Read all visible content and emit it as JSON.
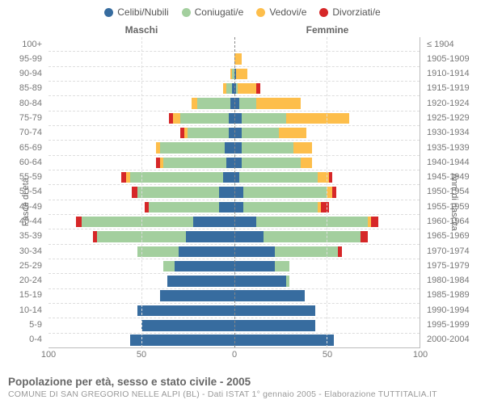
{
  "legend": [
    {
      "label": "Celibi/Nubili",
      "color": "#376c9f"
    },
    {
      "label": "Coniugati/e",
      "color": "#a3cf9e"
    },
    {
      "label": "Vedovi/e",
      "color": "#fdbe4b"
    },
    {
      "label": "Divorziati/e",
      "color": "#d62728"
    }
  ],
  "gender": {
    "left": "Maschi",
    "right": "Femmine"
  },
  "axis": {
    "left_title": "Fasce di età",
    "right_title": "Anni di nascita",
    "x_max": 100,
    "x_ticks": [
      100,
      50,
      0,
      50,
      100
    ]
  },
  "title": "Popolazione per età, sesso e stato civile - 2005",
  "subtitle": "COMUNE DI SAN GREGORIO NELLE ALPI (BL) - Dati ISTAT 1° gennaio 2005 - Elaborazione TUTTITALIA.IT",
  "colors": {
    "background": "#ffffff",
    "grid": "#dddddd",
    "center": "#888888",
    "text": "#777777"
  },
  "rows": [
    {
      "age": "100+",
      "birth": "≤ 1904",
      "m": {
        "c": 0,
        "co": 0,
        "v": 0,
        "d": 0
      },
      "f": {
        "c": 0,
        "co": 0,
        "v": 0,
        "d": 0
      }
    },
    {
      "age": "95-99",
      "birth": "1905-1909",
      "m": {
        "c": 0,
        "co": 0,
        "v": 0,
        "d": 0
      },
      "f": {
        "c": 0,
        "co": 0,
        "v": 4,
        "d": 0
      }
    },
    {
      "age": "90-94",
      "birth": "1910-1914",
      "m": {
        "c": 0,
        "co": 1,
        "v": 1,
        "d": 0
      },
      "f": {
        "c": 1,
        "co": 0,
        "v": 6,
        "d": 0
      }
    },
    {
      "age": "85-89",
      "birth": "1915-1919",
      "m": {
        "c": 1,
        "co": 3,
        "v": 2,
        "d": 0
      },
      "f": {
        "c": 1,
        "co": 1,
        "v": 10,
        "d": 2
      }
    },
    {
      "age": "80-84",
      "birth": "1920-1924",
      "m": {
        "c": 2,
        "co": 18,
        "v": 3,
        "d": 0
      },
      "f": {
        "c": 3,
        "co": 9,
        "v": 24,
        "d": 0
      }
    },
    {
      "age": "75-79",
      "birth": "1925-1929",
      "m": {
        "c": 3,
        "co": 26,
        "v": 4,
        "d": 2
      },
      "f": {
        "c": 4,
        "co": 24,
        "v": 34,
        "d": 0
      }
    },
    {
      "age": "70-74",
      "birth": "1930-1934",
      "m": {
        "c": 3,
        "co": 22,
        "v": 2,
        "d": 2
      },
      "f": {
        "c": 4,
        "co": 20,
        "v": 15,
        "d": 0
      }
    },
    {
      "age": "65-69",
      "birth": "1935-1939",
      "m": {
        "c": 5,
        "co": 35,
        "v": 2,
        "d": 0
      },
      "f": {
        "c": 4,
        "co": 28,
        "v": 10,
        "d": 0
      }
    },
    {
      "age": "60-64",
      "birth": "1940-1944",
      "m": {
        "c": 4,
        "co": 34,
        "v": 2,
        "d": 2
      },
      "f": {
        "c": 4,
        "co": 32,
        "v": 6,
        "d": 0
      }
    },
    {
      "age": "55-59",
      "birth": "1945-1949",
      "m": {
        "c": 6,
        "co": 50,
        "v": 2,
        "d": 3
      },
      "f": {
        "c": 3,
        "co": 42,
        "v": 6,
        "d": 2
      }
    },
    {
      "age": "50-54",
      "birth": "1950-1954",
      "m": {
        "c": 8,
        "co": 44,
        "v": 0,
        "d": 3
      },
      "f": {
        "c": 5,
        "co": 45,
        "v": 3,
        "d": 2
      }
    },
    {
      "age": "45-49",
      "birth": "1955-1959",
      "m": {
        "c": 8,
        "co": 38,
        "v": 0,
        "d": 2
      },
      "f": {
        "c": 5,
        "co": 40,
        "v": 2,
        "d": 4
      }
    },
    {
      "age": "40-44",
      "birth": "1960-1964",
      "m": {
        "c": 22,
        "co": 60,
        "v": 0,
        "d": 3
      },
      "f": {
        "c": 12,
        "co": 60,
        "v": 2,
        "d": 4
      }
    },
    {
      "age": "35-39",
      "birth": "1965-1969",
      "m": {
        "c": 26,
        "co": 48,
        "v": 0,
        "d": 2
      },
      "f": {
        "c": 16,
        "co": 52,
        "v": 0,
        "d": 4
      }
    },
    {
      "age": "30-34",
      "birth": "1970-1974",
      "m": {
        "c": 30,
        "co": 22,
        "v": 0,
        "d": 0
      },
      "f": {
        "c": 22,
        "co": 34,
        "v": 0,
        "d": 2
      }
    },
    {
      "age": "25-29",
      "birth": "1975-1979",
      "m": {
        "c": 32,
        "co": 6,
        "v": 0,
        "d": 0
      },
      "f": {
        "c": 22,
        "co": 8,
        "v": 0,
        "d": 0
      }
    },
    {
      "age": "20-24",
      "birth": "1980-1984",
      "m": {
        "c": 36,
        "co": 0,
        "v": 0,
        "d": 0
      },
      "f": {
        "c": 28,
        "co": 2,
        "v": 0,
        "d": 0
      }
    },
    {
      "age": "15-19",
      "birth": "1985-1989",
      "m": {
        "c": 40,
        "co": 0,
        "v": 0,
        "d": 0
      },
      "f": {
        "c": 38,
        "co": 0,
        "v": 0,
        "d": 0
      }
    },
    {
      "age": "10-14",
      "birth": "1990-1994",
      "m": {
        "c": 52,
        "co": 0,
        "v": 0,
        "d": 0
      },
      "f": {
        "c": 44,
        "co": 0,
        "v": 0,
        "d": 0
      }
    },
    {
      "age": "5-9",
      "birth": "1995-1999",
      "m": {
        "c": 50,
        "co": 0,
        "v": 0,
        "d": 0
      },
      "f": {
        "c": 44,
        "co": 0,
        "v": 0,
        "d": 0
      }
    },
    {
      "age": "0-4",
      "birth": "2000-2004",
      "m": {
        "c": 56,
        "co": 0,
        "v": 0,
        "d": 0
      },
      "f": {
        "c": 54,
        "co": 0,
        "v": 0,
        "d": 0
      }
    }
  ]
}
